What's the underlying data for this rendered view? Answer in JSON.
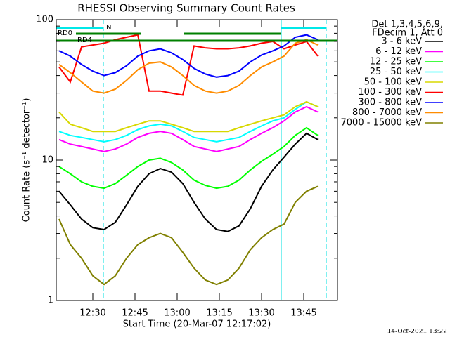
{
  "chart_data": {
    "type": "line",
    "title": "RHESSI Observing Summary Count Rates",
    "x_label": "Start Time (20-Mar-07 12:17:02)",
    "y_label": "Count Rate (s⁻¹ detector⁻¹)",
    "legend_header": [
      "Det 1,3,4,5,6,9,",
      "FDecim 1, Att 0"
    ],
    "footer": "14-Oct-2021 13:22",
    "log_y": true,
    "xlim": [
      737,
      837
    ],
    "ylim": [
      1,
      100
    ],
    "xticks": [
      {
        "value": 750,
        "label": "12:30"
      },
      {
        "value": 765,
        "label": "12:45"
      },
      {
        "value": 780,
        "label": "13:00"
      },
      {
        "value": 795,
        "label": "13:15"
      },
      {
        "value": 810,
        "label": "13:30"
      },
      {
        "value": 825,
        "label": "13:45"
      }
    ],
    "yticks": [
      1,
      10,
      100
    ],
    "yminorticks": [
      2,
      3,
      4,
      5,
      6,
      7,
      8,
      9,
      20,
      30,
      40,
      50,
      60,
      70,
      80,
      90
    ],
    "vlines": [
      {
        "x": 737,
        "style": "solid",
        "color": "#00e0e0"
      },
      {
        "x": 753.75,
        "style": "dashed",
        "color": "#00e0e0"
      },
      {
        "x": 817,
        "style": "solid",
        "color": "#00e0e0"
      },
      {
        "x": 833,
        "style": "dashed",
        "color": "#00e0e0"
      }
    ],
    "flags": [
      {
        "label": "N",
        "color": "#00e8e8",
        "segments": [
          [
            737,
            753.75
          ],
          [
            817,
            833
          ]
        ]
      },
      {
        "label": "RD0",
        "color": "#008000",
        "segments": [
          [
            744,
            767
          ],
          [
            782.5,
            817
          ]
        ]
      },
      {
        "label": "RD4",
        "color": "#008000",
        "segments": [
          [
            737,
            837
          ]
        ]
      }
    ],
    "x": [
      738,
      742,
      746,
      750,
      754,
      758,
      762,
      766,
      770,
      774,
      778,
      782,
      786,
      790,
      794,
      798,
      802,
      806,
      810,
      814,
      818,
      822,
      826,
      830
    ],
    "series": [
      {
        "name": "3 - 6 keV",
        "color": "#000000",
        "values": [
          6,
          4.8,
          3.8,
          3.3,
          3.2,
          3.6,
          4.8,
          6.5,
          8,
          8.7,
          8.2,
          6.8,
          5,
          3.8,
          3.2,
          3.1,
          3.4,
          4.5,
          6.5,
          8.5,
          10.5,
          13,
          15.5,
          14
        ]
      },
      {
        "name": "6 - 12 keV",
        "color": "#ff00ff",
        "values": [
          14,
          13,
          12.5,
          12,
          11.5,
          12,
          13,
          14.5,
          15.5,
          16,
          15.5,
          14,
          12.5,
          12,
          11.5,
          12,
          12.5,
          14,
          15.5,
          17,
          19,
          22,
          24,
          22
        ]
      },
      {
        "name": "12 - 25 keV",
        "color": "#00ff00",
        "values": [
          9,
          8,
          7,
          6.5,
          6.3,
          6.8,
          7.8,
          9,
          10,
          10.3,
          9.6,
          8.5,
          7.2,
          6.6,
          6.3,
          6.5,
          7.2,
          8.5,
          9.8,
          11,
          12.5,
          15,
          17,
          15
        ]
      },
      {
        "name": "25 - 50 keV",
        "color": "#00ffff",
        "values": [
          16,
          15,
          14.5,
          14,
          13.5,
          14,
          15,
          16.5,
          17.5,
          18,
          17.5,
          16,
          14.5,
          14,
          13.5,
          14,
          14.5,
          16,
          17.5,
          19,
          20,
          23,
          26,
          24
        ]
      },
      {
        "name": "50 - 100 keV",
        "color": "#d8d800",
        "values": [
          22,
          18,
          17,
          16,
          16,
          16,
          17,
          18,
          19,
          19,
          18,
          17,
          16,
          16,
          16,
          16,
          17,
          18,
          19,
          20,
          21,
          24,
          26,
          24
        ]
      },
      {
        "name": "100 - 300 keV",
        "color": "#ff0000",
        "values": [
          46,
          36,
          64,
          66,
          68,
          72,
          75,
          78,
          31,
          31,
          30,
          29,
          65,
          63,
          62,
          62,
          63,
          65,
          68,
          70,
          62,
          66,
          70,
          55
        ]
      },
      {
        "name": "300 - 800 keV",
        "color": "#0000ff",
        "values": [
          60,
          55,
          48,
          43,
          40,
          42,
          47,
          55,
          60,
          62,
          58,
          52,
          45,
          41,
          39,
          40,
          43,
          50,
          56,
          60,
          65,
          75,
          78,
          72
        ]
      },
      {
        "name": "800 - 7000 keV",
        "color": "#ff8c00",
        "values": [
          48,
          42,
          36,
          31,
          30,
          32,
          37,
          44,
          49,
          50,
          46,
          40,
          34,
          31,
          30,
          31,
          34,
          40,
          46,
          50,
          55,
          68,
          72,
          66
        ]
      },
      {
        "name": "7000 - 15000 keV",
        "color": "#808000",
        "values": [
          3.8,
          2.5,
          2,
          1.5,
          1.3,
          1.5,
          2,
          2.5,
          2.8,
          3,
          2.8,
          2.2,
          1.7,
          1.4,
          1.3,
          1.4,
          1.7,
          2.3,
          2.8,
          3.2,
          3.5,
          5,
          6,
          6.5
        ]
      }
    ]
  }
}
